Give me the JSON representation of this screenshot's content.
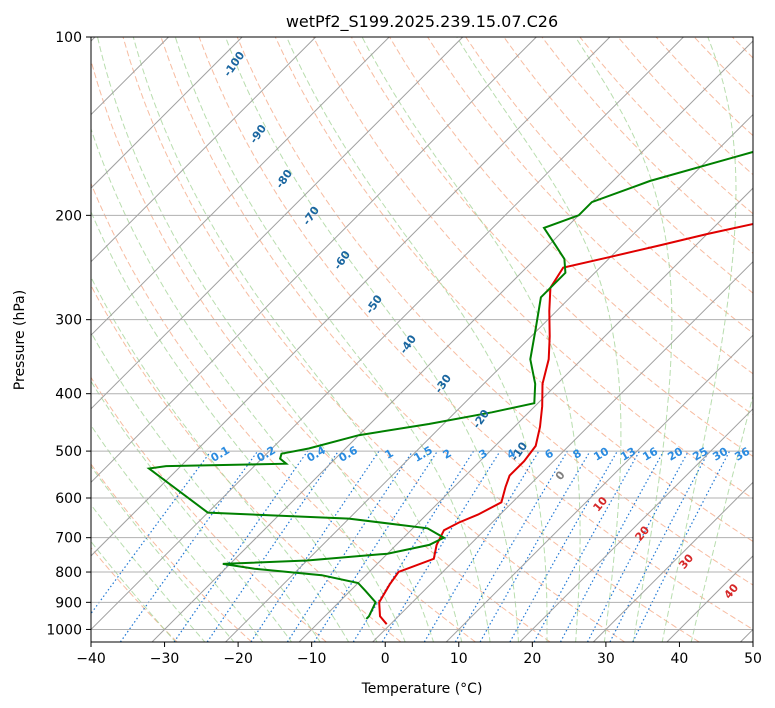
{
  "chart_data": {
    "type": "skew-t",
    "title": "wetPf2_S199.2025.239.15.07.C26",
    "xlabel": "Temperature (°C)",
    "ylabel": "Pressure (hPa)",
    "xlim": [
      -40,
      50
    ],
    "ylim": [
      1050,
      100
    ],
    "x_ticks": [
      -40,
      -30,
      -20,
      -10,
      0,
      10,
      20,
      30,
      40,
      50
    ],
    "x_tick_labels": [
      "−40",
      "−30",
      "−20",
      "−10",
      "0",
      "10",
      "20",
      "30",
      "40",
      "50"
    ],
    "y_ticks": [
      1000,
      900,
      800,
      700,
      600,
      500,
      400,
      300,
      200,
      100
    ],
    "y_scale": "log",
    "grid": true,
    "colors": {
      "temperature": "#e00000",
      "dewpoint": "#008000",
      "dry_adiabat": "#f4a582",
      "moist_adiabat": "#a6d49a",
      "mixing_ratio": "#1f77d4",
      "mixing_ratio_label": "#2a8be0",
      "dry_label": "#1a66a0",
      "moist_label": "#d62728",
      "wetbulb_label": "#808080",
      "grid": "#b0b0b0",
      "isotherm": "#a0a0a0"
    },
    "series": [
      {
        "name": "Temperature",
        "points": [
          [
            -0.5,
            980
          ],
          [
            -2.5,
            950
          ],
          [
            -4.5,
            900
          ],
          [
            -5.5,
            840
          ],
          [
            -6.0,
            800
          ],
          [
            -3.0,
            760
          ],
          [
            -4.5,
            720
          ],
          [
            -5.5,
            680
          ],
          [
            -4.5,
            660
          ],
          [
            -3.0,
            640
          ],
          [
            -1.5,
            610
          ],
          [
            -3.0,
            575
          ],
          [
            -4.0,
            550
          ],
          [
            -4.0,
            520
          ],
          [
            -4.5,
            490
          ],
          [
            -6.5,
            455
          ],
          [
            -9.0,
            420
          ],
          [
            -12.0,
            385
          ],
          [
            -14.5,
            350
          ],
          [
            -17.5,
            320
          ],
          [
            -21.0,
            290
          ],
          [
            -24.0,
            265
          ],
          [
            -25.0,
            245
          ],
          [
            -20.0,
            235
          ],
          [
            -15.0,
            225
          ],
          [
            -10.0,
            215
          ],
          [
            -4.0,
            205
          ],
          [
            0.0,
            200
          ],
          [
            6.0,
            190
          ],
          [
            15.0,
            175
          ],
          [
            22.0,
            160
          ],
          [
            27.0,
            145
          ],
          [
            30.0,
            132
          ],
          [
            32.0,
            120
          ],
          [
            34.0,
            110
          ],
          [
            36.0,
            103
          ],
          [
            38.5,
            100
          ]
        ]
      },
      {
        "name": "Dewpoint",
        "points": [
          [
            -4.0,
            960
          ],
          [
            -4.0,
            950
          ],
          [
            -5.0,
            900
          ],
          [
            -8.0,
            860
          ],
          [
            -10.0,
            835
          ],
          [
            -16.0,
            810
          ],
          [
            -26.0,
            790
          ],
          [
            -31.0,
            775
          ],
          [
            -20.0,
            765
          ],
          [
            -10.0,
            745
          ],
          [
            -5.5,
            720
          ],
          [
            -4.5,
            700
          ],
          [
            -8.0,
            675
          ],
          [
            -20.0,
            650
          ],
          [
            -40.0,
            635
          ],
          [
            -54.0,
            535
          ],
          [
            -52.0,
            530
          ],
          [
            -36.0,
            525
          ],
          [
            -37.5,
            515
          ],
          [
            -38.0,
            505
          ],
          [
            -35.0,
            495
          ],
          [
            -30.0,
            470
          ],
          [
            -22.0,
            450
          ],
          [
            -15.0,
            430
          ],
          [
            -10.5,
            415
          ],
          [
            -13.0,
            385
          ],
          [
            -17.0,
            350
          ],
          [
            -20.5,
            310
          ],
          [
            -24.0,
            275
          ],
          [
            -24.0,
            250
          ],
          [
            -26.0,
            237
          ],
          [
            -29.0,
            225
          ],
          [
            -33.0,
            210
          ],
          [
            -30.0,
            200
          ],
          [
            -30.0,
            190
          ],
          [
            -25.0,
            175
          ],
          [
            -17.0,
            160
          ],
          [
            -10.0,
            148
          ],
          [
            -6.0,
            140
          ],
          [
            -4.0,
            128
          ],
          [
            -1.0,
            118
          ],
          [
            0.0,
            112
          ],
          [
            1.5,
            106
          ],
          [
            2.0,
            100
          ]
        ]
      }
    ],
    "dry_adiabat_labels": [
      "-100",
      "-90",
      "-80",
      "-70",
      "-60",
      "-50",
      "-40",
      "-30",
      "-20",
      "-10"
    ],
    "moist_adiabat_labels": [
      "0",
      "10",
      "20",
      "30",
      "40"
    ],
    "mixing_ratio_labels": [
      "0.1",
      "0.2",
      "0.4",
      "0.6",
      "1",
      "1.5",
      "2",
      "3",
      "4",
      "6",
      "8",
      "10",
      "13",
      "16",
      "20",
      "25",
      "30",
      "36"
    ]
  }
}
